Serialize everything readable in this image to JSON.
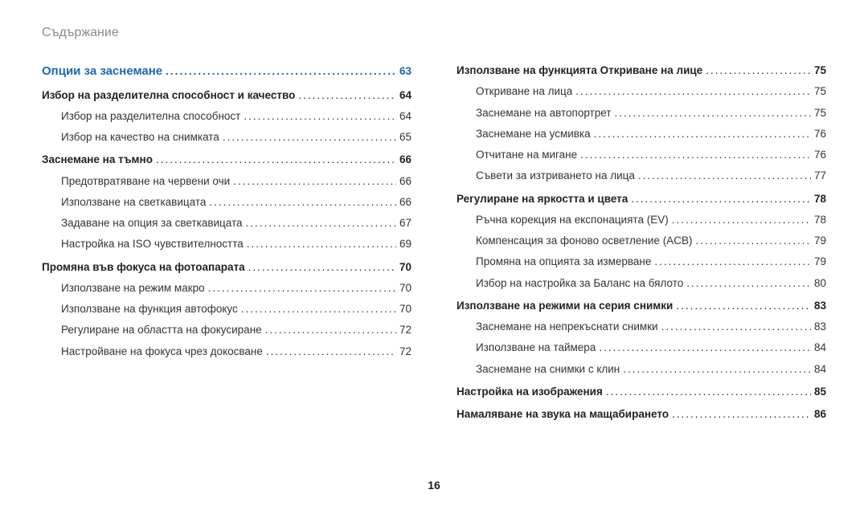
{
  "header": "Съдържание",
  "pageNumber": "16",
  "left": [
    {
      "type": "chapter",
      "label": "Опции за заснемане",
      "page": "63"
    },
    {
      "type": "section",
      "label": "Избор на разделителна способност и качество",
      "page": "64"
    },
    {
      "type": "sub",
      "label": "Избор на разделителна способност",
      "page": "64"
    },
    {
      "type": "sub",
      "label": "Избор на качество на снимката",
      "page": "65"
    },
    {
      "type": "section",
      "label": "Заснемане на тъмно",
      "page": "66"
    },
    {
      "type": "sub",
      "label": "Предотвратяване на червени очи",
      "page": "66"
    },
    {
      "type": "sub",
      "label": "Използване на светкавицата",
      "page": "66"
    },
    {
      "type": "sub",
      "label": "Задаване на опция за светкавицата",
      "page": "67"
    },
    {
      "type": "sub",
      "label": "Настройка на ISO чувствителността",
      "page": "69"
    },
    {
      "type": "section",
      "label": "Промяна във фокуса на фотоапарата",
      "page": "70"
    },
    {
      "type": "sub",
      "label": "Използване на режим макро",
      "page": "70"
    },
    {
      "type": "sub",
      "label": "Използване на функция автофокус",
      "page": "70"
    },
    {
      "type": "sub",
      "label": "Регулиране на областта на фокусиране",
      "page": "72"
    },
    {
      "type": "sub",
      "label": "Настройване на фокуса чрез докосване",
      "page": "72"
    }
  ],
  "right": [
    {
      "type": "section",
      "label": "Използване на функцията Откриване на лице",
      "page": "75"
    },
    {
      "type": "sub",
      "label": "Откриване на лица",
      "page": "75"
    },
    {
      "type": "sub",
      "label": "Заснемане на автопортрет",
      "page": "75"
    },
    {
      "type": "sub",
      "label": "Заснемане на усмивка",
      "page": "76"
    },
    {
      "type": "sub",
      "label": "Отчитане на мигане",
      "page": "76"
    },
    {
      "type": "sub",
      "label": "Съвети за изтриването на лица",
      "page": "77"
    },
    {
      "type": "section",
      "label": "Регулиране на яркостта и цвета",
      "page": "78"
    },
    {
      "type": "sub",
      "label": "Ръчна корекция на експонацията (EV)",
      "page": "78"
    },
    {
      "type": "sub",
      "label": "Компенсация за фоново осветление (ACB)",
      "page": "79"
    },
    {
      "type": "sub",
      "label": "Промяна на опцията за измерване",
      "page": "79"
    },
    {
      "type": "sub",
      "label": "Избор на настройка за Баланс на бялото",
      "page": "80"
    },
    {
      "type": "section",
      "label": "Използване на режими на серия снимки",
      "page": "83"
    },
    {
      "type": "sub",
      "label": "Заснемане на непрекъснати снимки",
      "page": "83"
    },
    {
      "type": "sub",
      "label": "Използване на таймера",
      "page": "84"
    },
    {
      "type": "sub",
      "label": "Заснемане на снимки с клин",
      "page": "84"
    },
    {
      "type": "section",
      "label": "Настройка на изображения",
      "page": "85"
    },
    {
      "type": "section",
      "label": "Намаляване на звука на мащабирането",
      "page": "86"
    }
  ]
}
